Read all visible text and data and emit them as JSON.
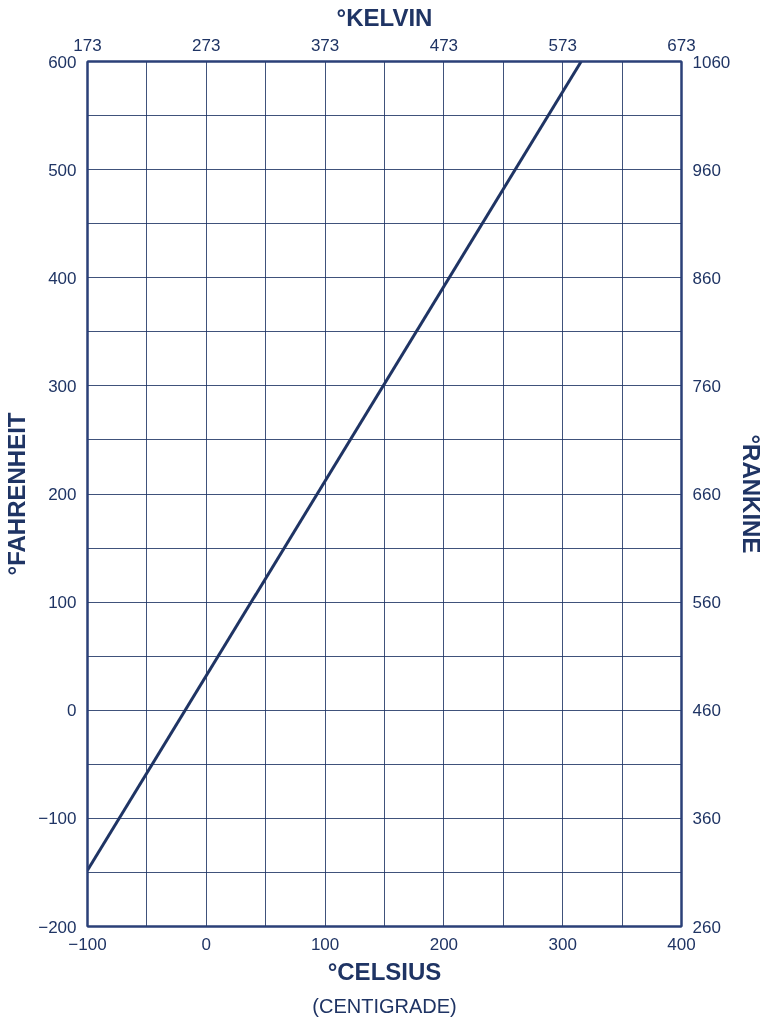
{
  "chart_data": {
    "type": "line",
    "xlabel": "°CELSIUS",
    "ylabel": "°FAHRENHEIT",
    "y2label": "°RANKINE",
    "x2label": "°KELVIN",
    "annotations": [
      "(CENTIGRADE)"
    ],
    "series": [
      {
        "color": "#1f3464",
        "x": [
          -100,
          315.56
        ],
        "values": [
          -148,
          600
        ]
      }
    ],
    "xlim": [
      -100,
      400
    ],
    "xticks": [
      -100,
      {
        "value": -50,
        "label": null
      },
      0,
      {
        "value": 50,
        "label": null
      },
      100,
      {
        "value": 150,
        "label": null
      },
      200,
      {
        "value": 250,
        "label": null
      },
      300,
      {
        "value": 350,
        "label": null
      },
      400
    ],
    "ylim": [
      -200,
      600
    ],
    "yticks": [
      -200,
      {
        "value": -150,
        "label": null
      },
      -100,
      {
        "value": -50,
        "label": null
      },
      0,
      {
        "value": 50,
        "label": null
      },
      100,
      {
        "value": 150,
        "label": null
      },
      200,
      {
        "value": 250,
        "label": null
      },
      300,
      {
        "value": 350,
        "label": null
      },
      400,
      {
        "value": 450,
        "label": null
      },
      500,
      {
        "value": 550,
        "label": null
      },
      600
    ],
    "x2lim": [
      173,
      673
    ],
    "x2ticks": [
      173,
      273,
      373,
      473,
      573,
      673
    ],
    "y2lim": [
      260,
      1060
    ],
    "y2ticks": [
      260,
      360,
      460,
      560,
      660,
      760,
      860,
      960,
      1060
    ],
    "grid": true,
    "marker": "none",
    "line_style": "solid"
  }
}
